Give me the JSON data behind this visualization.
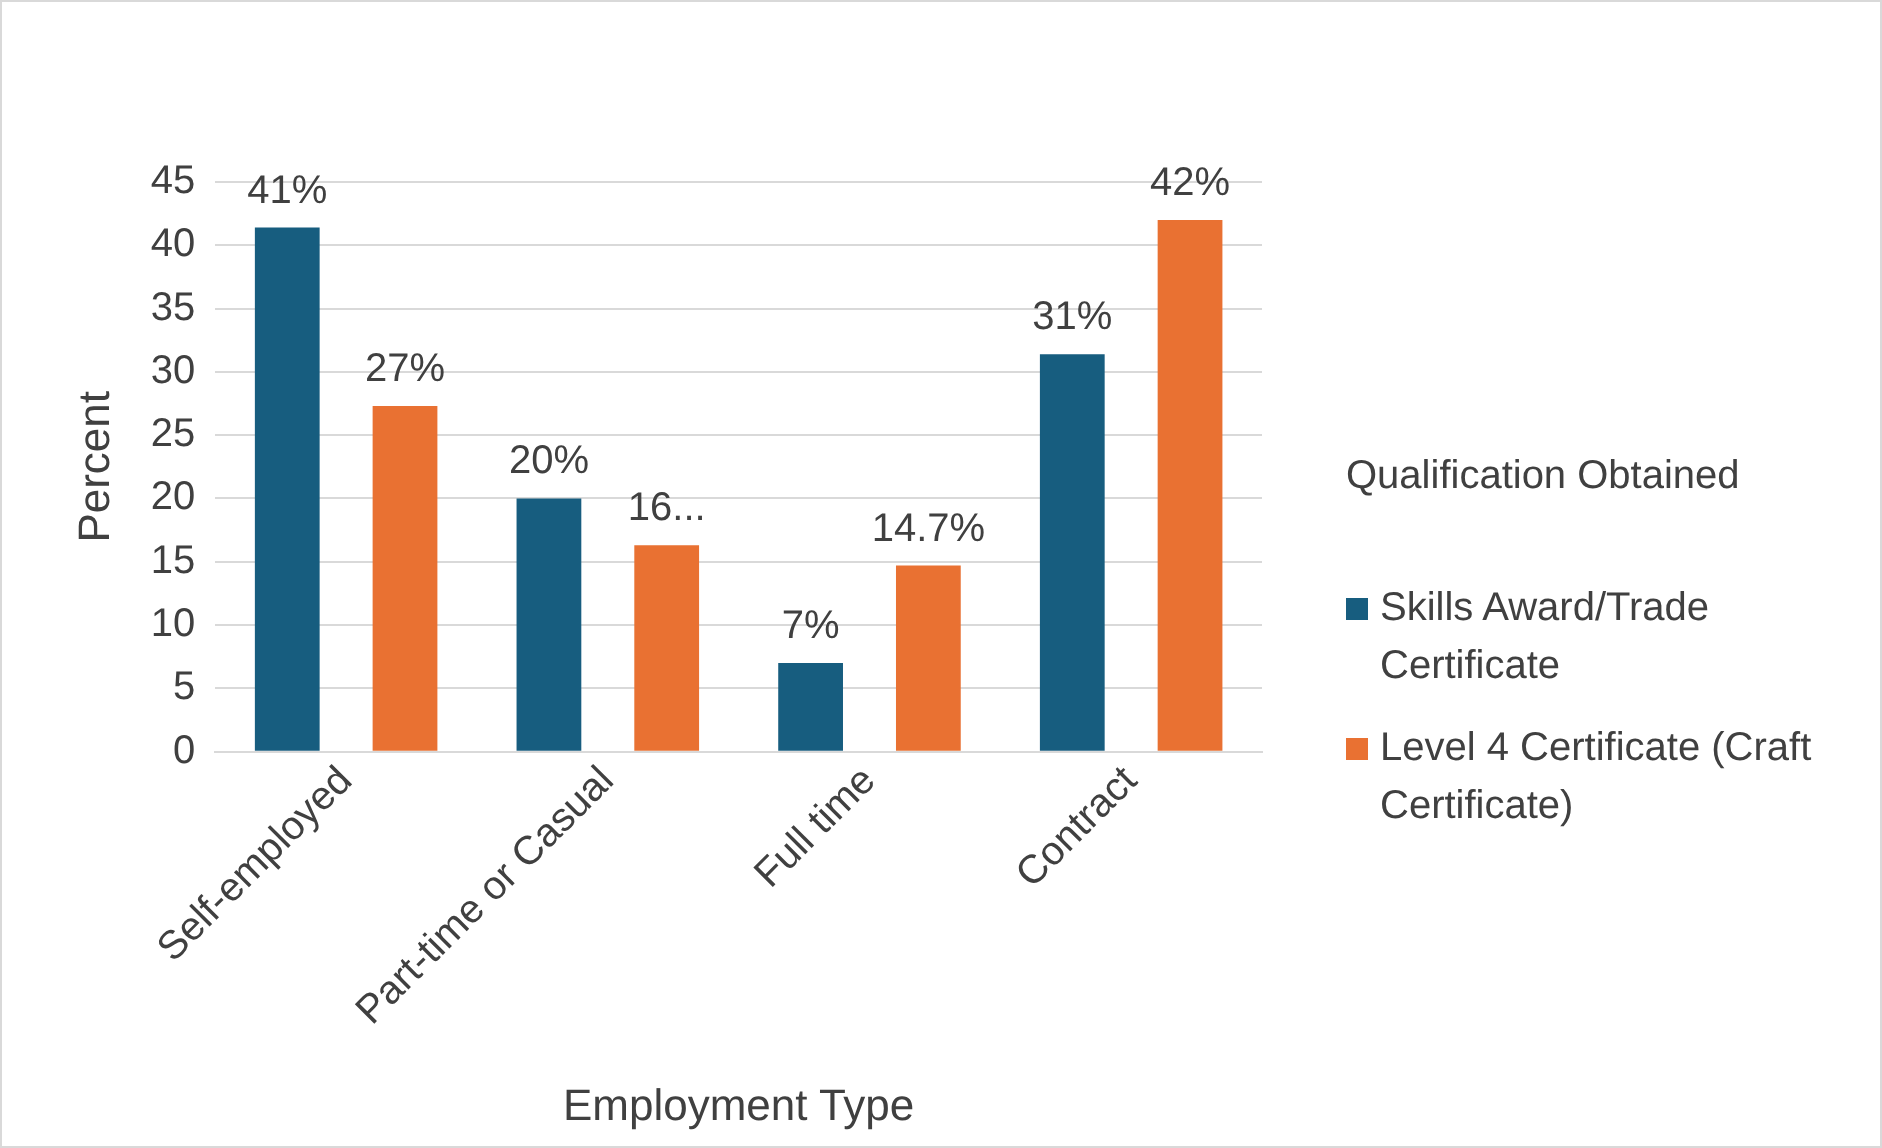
{
  "chart_data": {
    "type": "bar",
    "xlabel": "Employment Type",
    "ylabel": "Percent",
    "legend_title": "Qualification Obtained",
    "categories": [
      "Self-employed",
      "Part-time or Casual",
      "Full time",
      "Contract"
    ],
    "series": [
      {
        "name": "Skills Award/Trade Certificate",
        "color": "#175d7f",
        "values": [
          41.4,
          20,
          7,
          31.4
        ],
        "value_labels": [
          "41%",
          "20%",
          "7%",
          "31%"
        ]
      },
      {
        "name": "Level 4 Certificate (Craft Certificate)",
        "color": "#e97132",
        "values": [
          27.3,
          16.3,
          14.7,
          42
        ],
        "value_labels": [
          "27%",
          "16...",
          "14.7%",
          "42%"
        ]
      }
    ],
    "ylim": [
      0,
      45
    ],
    "yticks": [
      0,
      5,
      10,
      15,
      20,
      25,
      30,
      35,
      40,
      45
    ],
    "grid": "y",
    "legend": "right"
  }
}
